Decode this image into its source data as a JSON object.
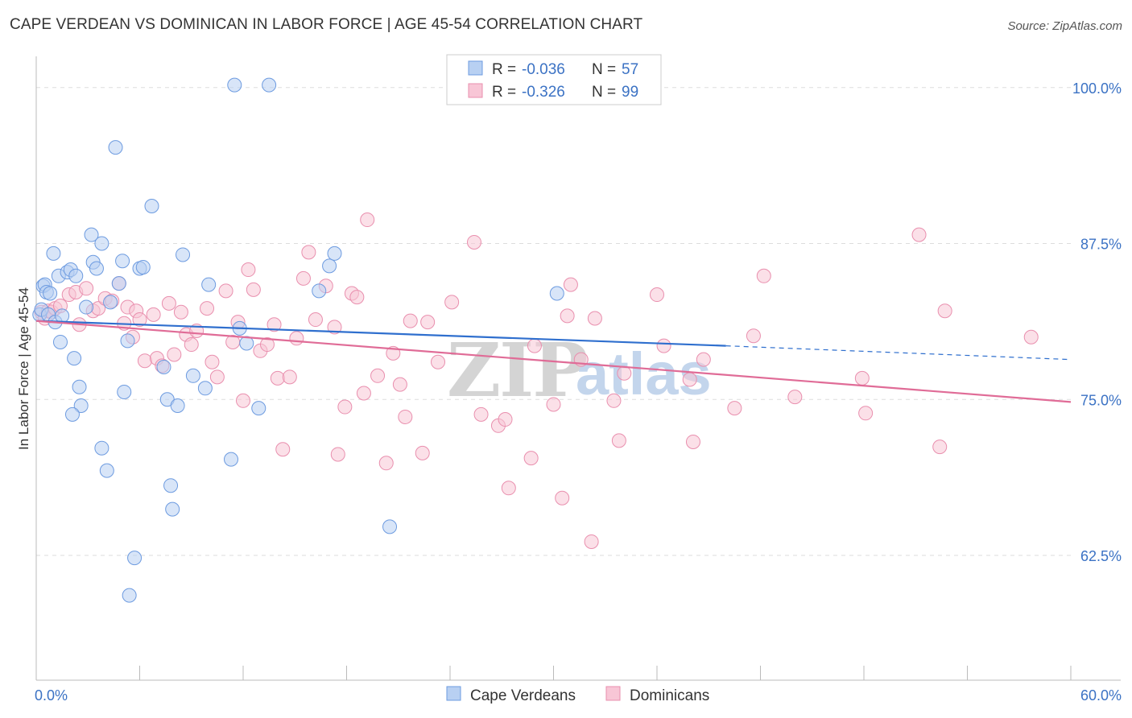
{
  "header": {
    "title": "CAPE VERDEAN VS DOMINICAN IN LABOR FORCE | AGE 45-54 CORRELATION CHART",
    "source": "Source: ZipAtlas.com"
  },
  "watermark": {
    "zip": "ZIP",
    "atlas": "atlas"
  },
  "colors": {
    "blue_fill": "#b8d0f2",
    "blue_stroke": "#6d9be0",
    "blue_line": "#2f6fce",
    "pink_fill": "#f8c6d6",
    "pink_stroke": "#e98fae",
    "pink_line": "#e06c97",
    "tick_text": "#3b72c4",
    "grid": "#dddddd"
  },
  "legend_top": {
    "rows": [
      {
        "series": "Cape Verdeans",
        "r_label": "R = ",
        "r_value": "-0.036",
        "n_label": "N = ",
        "n_value": "57"
      },
      {
        "series": "Dominicans",
        "r_label": "R = ",
        "r_value": "-0.326",
        "n_label": "N = ",
        "n_value": "99"
      }
    ]
  },
  "chart_data": {
    "type": "scatter",
    "title": "CAPE VERDEAN VS DOMINICAN IN LABOR FORCE | AGE 45-54 CORRELATION CHART",
    "xlabel": "",
    "ylabel": "In Labor Force | Age 45-54",
    "xlim": [
      0,
      60
    ],
    "ylim": [
      52.5,
      102.5
    ],
    "x_tick_labels": [
      "0.0%",
      "60.0%"
    ],
    "y_ticks": [
      62.5,
      75.0,
      87.5,
      100.0
    ],
    "y_tick_labels": [
      "62.5%",
      "75.0%",
      "87.5%",
      "100.0%"
    ],
    "legend": [
      "Cape Verdeans",
      "Dominicans"
    ],
    "series": [
      {
        "name": "Cape Verdeans",
        "r": -0.036,
        "n": 57,
        "trend": {
          "x0": 0,
          "y0": 81.3,
          "x1": 40.0,
          "y1": 79.3,
          "dash_x1": 60,
          "dash_y1": 78.2
        },
        "points": [
          [
            0.2,
            81.8
          ],
          [
            0.3,
            82.2
          ],
          [
            0.4,
            84.1
          ],
          [
            0.5,
            84.2
          ],
          [
            0.6,
            83.6
          ],
          [
            0.7,
            81.8
          ],
          [
            0.8,
            83.5
          ],
          [
            1.0,
            86.7
          ],
          [
            1.1,
            81.2
          ],
          [
            1.3,
            84.9
          ],
          [
            1.4,
            79.6
          ],
          [
            1.5,
            81.7
          ],
          [
            1.8,
            85.2
          ],
          [
            2.0,
            85.4
          ],
          [
            2.2,
            78.3
          ],
          [
            2.3,
            84.9
          ],
          [
            2.5,
            76.0
          ],
          [
            2.6,
            74.5
          ],
          [
            2.1,
            73.8
          ],
          [
            2.9,
            82.4
          ],
          [
            3.2,
            88.2
          ],
          [
            3.3,
            86.0
          ],
          [
            3.5,
            85.5
          ],
          [
            3.8,
            87.5
          ],
          [
            3.8,
            71.1
          ],
          [
            4.1,
            69.3
          ],
          [
            4.3,
            82.8
          ],
          [
            4.6,
            95.2
          ],
          [
            4.8,
            84.3
          ],
          [
            5.0,
            86.1
          ],
          [
            5.1,
            75.6
          ],
          [
            5.3,
            79.7
          ],
          [
            5.7,
            62.3
          ],
          [
            5.4,
            59.3
          ],
          [
            6.0,
            85.5
          ],
          [
            6.2,
            85.6
          ],
          [
            6.7,
            90.5
          ],
          [
            7.4,
            77.6
          ],
          [
            7.6,
            75.0
          ],
          [
            7.8,
            68.1
          ],
          [
            7.9,
            66.2
          ],
          [
            8.2,
            74.5
          ],
          [
            8.5,
            86.6
          ],
          [
            9.1,
            76.9
          ],
          [
            9.8,
            75.9
          ],
          [
            10.0,
            84.2
          ],
          [
            11.3,
            70.2
          ],
          [
            11.5,
            100.2
          ],
          [
            11.8,
            80.7
          ],
          [
            12.2,
            79.5
          ],
          [
            12.9,
            74.3
          ],
          [
            13.5,
            100.2
          ],
          [
            16.4,
            83.7
          ],
          [
            17.0,
            85.7
          ],
          [
            17.3,
            86.7
          ],
          [
            20.5,
            64.8
          ],
          [
            30.2,
            83.5
          ]
        ]
      },
      {
        "name": "Dominicans",
        "r": -0.326,
        "n": 99,
        "trend": {
          "x0": 0,
          "y0": 81.3,
          "x1": 60,
          "y1": 74.8
        },
        "points": [
          [
            0.3,
            82.0
          ],
          [
            0.5,
            81.5
          ],
          [
            0.7,
            82.1
          ],
          [
            0.9,
            82.0
          ],
          [
            1.1,
            82.3
          ],
          [
            1.4,
            82.5
          ],
          [
            1.9,
            83.4
          ],
          [
            2.3,
            83.6
          ],
          [
            2.5,
            81.0
          ],
          [
            2.9,
            83.9
          ],
          [
            3.3,
            82.1
          ],
          [
            3.6,
            82.3
          ],
          [
            4.0,
            83.1
          ],
          [
            4.4,
            82.9
          ],
          [
            4.8,
            84.3
          ],
          [
            5.1,
            81.1
          ],
          [
            5.3,
            82.4
          ],
          [
            5.6,
            80.0
          ],
          [
            5.8,
            82.1
          ],
          [
            6.0,
            81.4
          ],
          [
            6.3,
            78.1
          ],
          [
            6.8,
            81.8
          ],
          [
            7.0,
            78.3
          ],
          [
            7.3,
            77.7
          ],
          [
            7.7,
            82.7
          ],
          [
            8.0,
            78.6
          ],
          [
            8.4,
            82.0
          ],
          [
            8.7,
            80.2
          ],
          [
            9.0,
            79.4
          ],
          [
            9.3,
            80.5
          ],
          [
            9.9,
            82.3
          ],
          [
            10.2,
            78.0
          ],
          [
            10.5,
            76.8
          ],
          [
            11.0,
            83.7
          ],
          [
            11.4,
            79.6
          ],
          [
            11.7,
            81.2
          ],
          [
            12.0,
            74.9
          ],
          [
            12.3,
            85.4
          ],
          [
            12.6,
            83.8
          ],
          [
            13.0,
            78.9
          ],
          [
            13.4,
            79.4
          ],
          [
            13.8,
            81.0
          ],
          [
            14.0,
            76.7
          ],
          [
            14.3,
            71.0
          ],
          [
            14.7,
            76.8
          ],
          [
            15.1,
            79.9
          ],
          [
            15.5,
            84.7
          ],
          [
            15.8,
            86.8
          ],
          [
            16.2,
            81.4
          ],
          [
            16.8,
            84.1
          ],
          [
            17.3,
            80.8
          ],
          [
            17.5,
            70.6
          ],
          [
            17.9,
            74.4
          ],
          [
            18.3,
            83.5
          ],
          [
            18.6,
            83.2
          ],
          [
            19.0,
            75.5
          ],
          [
            19.2,
            89.4
          ],
          [
            19.8,
            76.9
          ],
          [
            20.3,
            69.9
          ],
          [
            20.7,
            78.7
          ],
          [
            21.1,
            76.2
          ],
          [
            21.4,
            73.6
          ],
          [
            21.7,
            81.3
          ],
          [
            22.4,
            70.7
          ],
          [
            22.7,
            81.2
          ],
          [
            23.3,
            78.0
          ],
          [
            24.1,
            82.8
          ],
          [
            25.4,
            87.6
          ],
          [
            25.8,
            73.8
          ],
          [
            26.8,
            72.9
          ],
          [
            27.2,
            73.4
          ],
          [
            27.4,
            67.9
          ],
          [
            28.7,
            70.3
          ],
          [
            28.9,
            79.3
          ],
          [
            30.0,
            74.6
          ],
          [
            30.5,
            67.1
          ],
          [
            30.8,
            81.7
          ],
          [
            31.0,
            84.2
          ],
          [
            31.6,
            78.2
          ],
          [
            32.2,
            63.6
          ],
          [
            32.4,
            81.5
          ],
          [
            33.5,
            74.9
          ],
          [
            33.8,
            71.7
          ],
          [
            34.1,
            77.1
          ],
          [
            36.0,
            83.4
          ],
          [
            36.4,
            79.3
          ],
          [
            37.9,
            76.6
          ],
          [
            38.1,
            71.6
          ],
          [
            38.7,
            78.2
          ],
          [
            40.5,
            74.3
          ],
          [
            41.6,
            80.1
          ],
          [
            42.2,
            84.9
          ],
          [
            44.0,
            75.2
          ],
          [
            47.9,
            76.7
          ],
          [
            48.1,
            73.9
          ],
          [
            51.2,
            88.2
          ],
          [
            52.4,
            71.2
          ],
          [
            52.7,
            82.1
          ],
          [
            57.7,
            80.0
          ]
        ]
      }
    ]
  }
}
